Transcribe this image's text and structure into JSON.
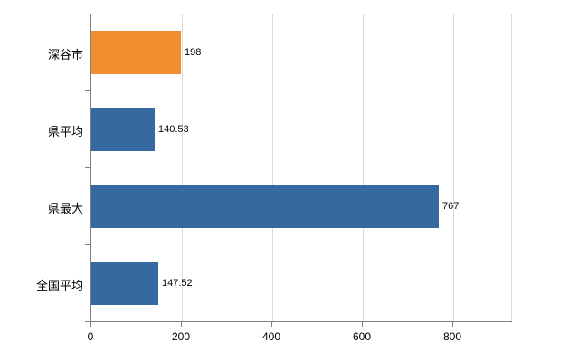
{
  "chart_data": {
    "type": "bar",
    "orientation": "horizontal",
    "title": "",
    "xlabel": "",
    "ylabel": "",
    "categories": [
      "深谷市",
      "県平均",
      "県最大",
      "全国平均"
    ],
    "values": [
      198,
      140.53,
      767,
      147.52
    ],
    "value_labels": [
      "198",
      "140.53",
      "767",
      "147.52"
    ],
    "bar_colors": [
      "#f08d2e",
      "#36699f",
      "#36699f",
      "#36699f"
    ],
    "x_ticks": [
      0,
      200,
      400,
      600,
      800
    ],
    "x_tick_labels": [
      "0",
      "200",
      "400",
      "600",
      "800"
    ],
    "xlim": [
      0,
      930
    ],
    "grid": "vertical-gridlines",
    "legend_position": "none",
    "colors": {
      "highlight_bar": "#f08d2e",
      "default_bar": "#36699f",
      "gridline": "#d9d9d9",
      "axis": "#808080",
      "background": "#ffffff"
    }
  }
}
